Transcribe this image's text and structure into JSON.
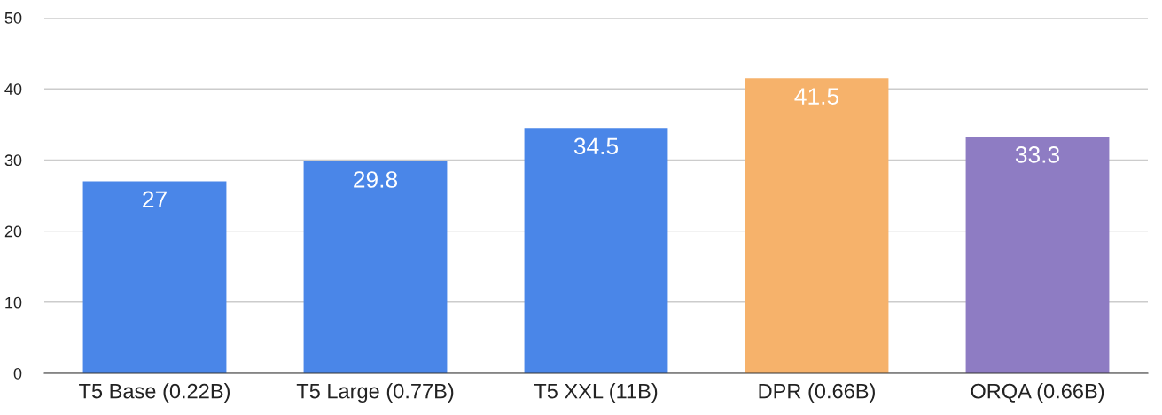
{
  "chart_data": {
    "type": "bar",
    "categories": [
      "T5 Base (0.22B)",
      "T5 Large (0.77B)",
      "T5 XXL (11B)",
      "DPR (0.66B)",
      "ORQA (0.66B)"
    ],
    "values": [
      27,
      29.8,
      34.5,
      41.5,
      33.3
    ],
    "colors": [
      "#4a86e8",
      "#4a86e8",
      "#4a86e8",
      "#f6b26b",
      "#8e7cc3"
    ],
    "ylim": [
      0,
      50
    ],
    "yticks": [
      0,
      10,
      20,
      30,
      40,
      50
    ],
    "grid": "y",
    "data_labels": true
  }
}
